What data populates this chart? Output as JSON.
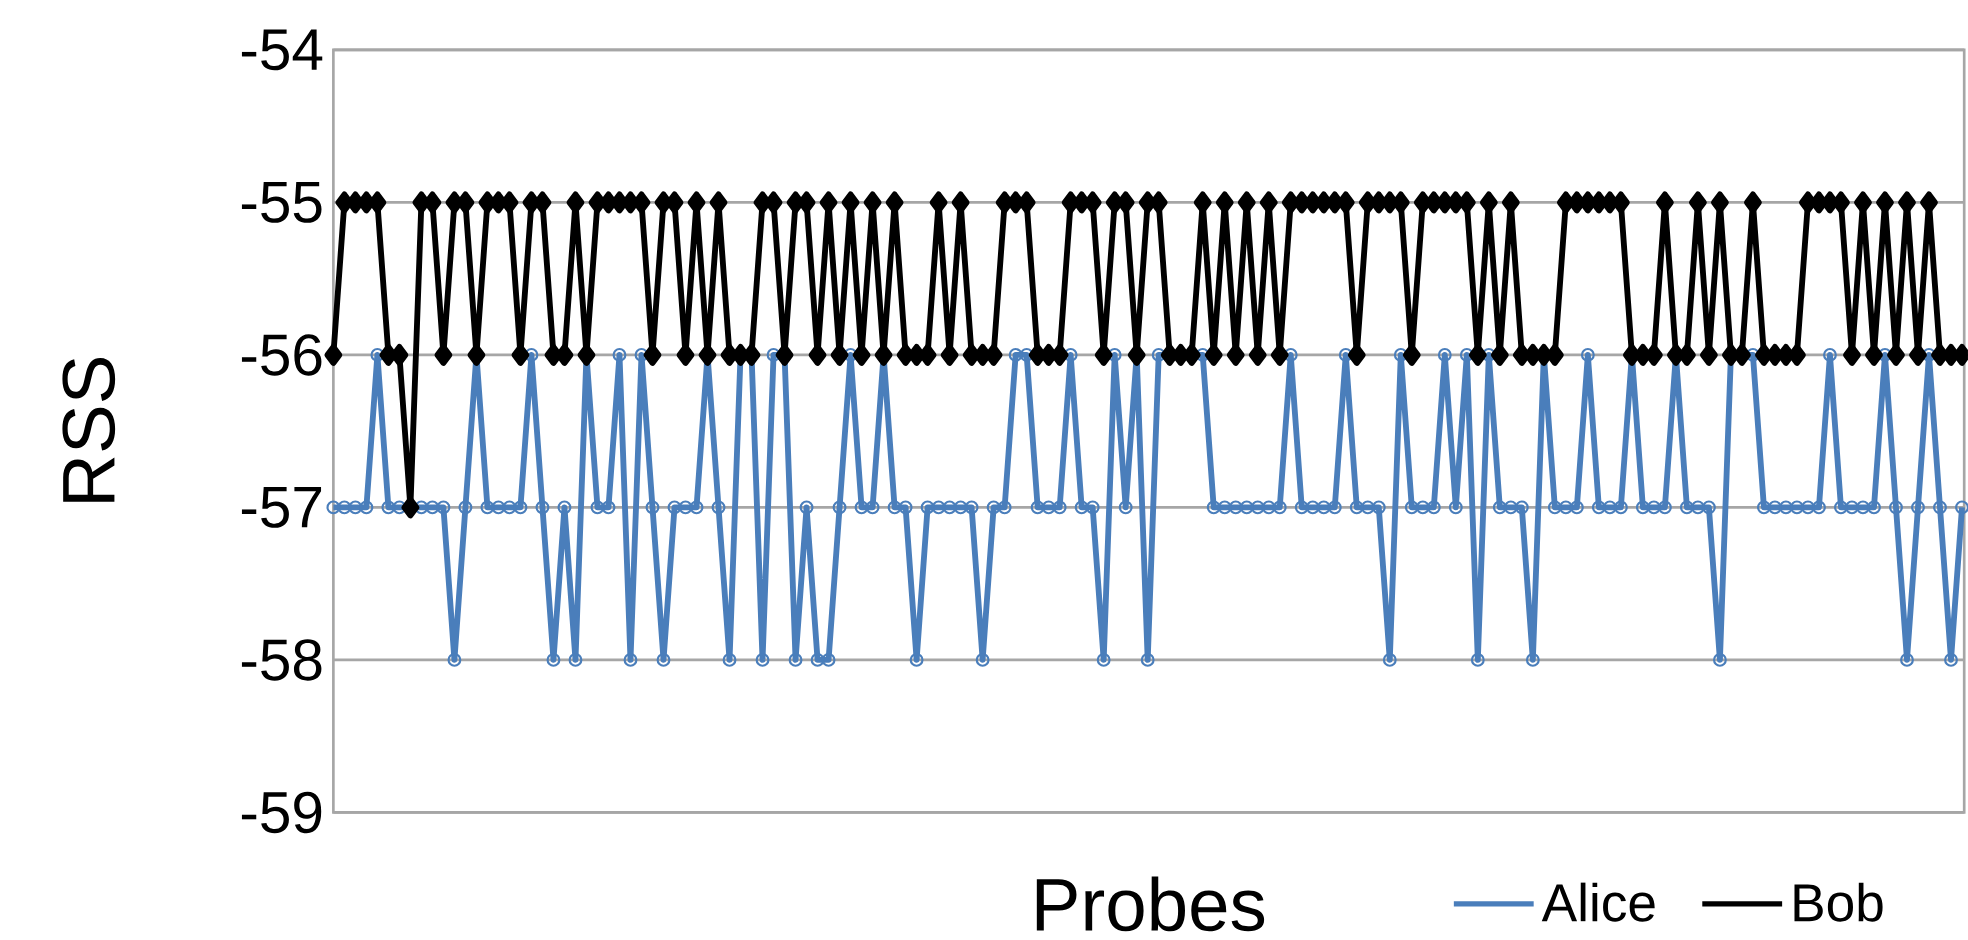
{
  "chart_data": {
    "type": "line",
    "xlabel": "Probes",
    "ylabel": "RSS",
    "categories": [
      null,
      null,
      null,
      null,
      null,
      null,
      null,
      null,
      null,
      null,
      null,
      null,
      null,
      null,
      null,
      null,
      null,
      null,
      null,
      null,
      null,
      null,
      null,
      null,
      null,
      null,
      null,
      null,
      null,
      null,
      null,
      null,
      null,
      null,
      null,
      null,
      null,
      null,
      null,
      null,
      null,
      null,
      null,
      null,
      null,
      null,
      null,
      null,
      null,
      null,
      null,
      null,
      null,
      null,
      null,
      null,
      null,
      null,
      null,
      null,
      null,
      null,
      null,
      null,
      null,
      null,
      null,
      null,
      null,
      null,
      null,
      null,
      null,
      null,
      null,
      null,
      null,
      null,
      null,
      null,
      null,
      null,
      null,
      null,
      null,
      null,
      null,
      null,
      null,
      null,
      null,
      null,
      null,
      null,
      null,
      null,
      null,
      null,
      null,
      null,
      null,
      null,
      null,
      null,
      null,
      null,
      null,
      null,
      null,
      null,
      null,
      null,
      null,
      null,
      null,
      null,
      null,
      null,
      null,
      null,
      null,
      null,
      null,
      null,
      null,
      null,
      null,
      null,
      null,
      null,
      null,
      null,
      null,
      null,
      null,
      null,
      null,
      null,
      null,
      null,
      null,
      null,
      null,
      null,
      null,
      null,
      null,
      null,
      null
    ],
    "series": [
      {
        "name": "Alice",
        "color": "#4a7ebb",
        "marker": "circle",
        "values": [
          -57,
          -57,
          -57,
          -57,
          -56,
          -57,
          -57,
          -57,
          -57,
          -57,
          -57,
          -58,
          -57,
          -56,
          -57,
          -57,
          -57,
          -57,
          -56,
          -57,
          -58,
          -57,
          -58,
          -56,
          -57,
          -57,
          -56,
          -58,
          -56,
          -57,
          -58,
          -57,
          -57,
          -57,
          -56,
          -57,
          -58,
          -56,
          -56,
          -58,
          -56,
          -56,
          -58,
          -57,
          -58,
          -58,
          -57,
          -56,
          -57,
          -57,
          -56,
          -57,
          -57,
          -58,
          -57,
          -57,
          -57,
          -57,
          -57,
          -58,
          -57,
          -57,
          -56,
          -56,
          -57,
          -57,
          -57,
          -56,
          -57,
          -57,
          -58,
          -56,
          -57,
          -56,
          -58,
          -56,
          -56,
          -56,
          -56,
          -56,
          -57,
          -57,
          -57,
          -57,
          -57,
          -57,
          -57,
          -56,
          -57,
          -57,
          -57,
          -57,
          -56,
          -57,
          -57,
          -57,
          -58,
          -56,
          -57,
          -57,
          -57,
          -56,
          -57,
          -56,
          -58,
          -56,
          -57,
          -57,
          -57,
          -58,
          -56,
          -57,
          -57,
          -57,
          -56,
          -57,
          -57,
          -57,
          -56,
          -57,
          -57,
          -57,
          -56,
          -57,
          -57,
          -57,
          -58,
          -56,
          -56,
          -56,
          -57,
          -57,
          -57,
          -57,
          -57,
          -57,
          -56,
          -57,
          -57,
          -57,
          -57,
          -56,
          -57,
          -58,
          -57,
          -56,
          -57,
          -58,
          -57
        ]
      },
      {
        "name": "Bob",
        "color": "#000000",
        "marker": "diamond",
        "values": [
          -56,
          -55,
          -55,
          -55,
          -55,
          -56,
          -56,
          -57,
          -55,
          -55,
          -56,
          -55,
          -55,
          -56,
          -55,
          -55,
          -55,
          -56,
          -55,
          -55,
          -56,
          -56,
          -55,
          -56,
          -55,
          -55,
          -55,
          -55,
          -55,
          -56,
          -55,
          -55,
          -56,
          -55,
          -56,
          -55,
          -56,
          -56,
          -56,
          -55,
          -55,
          -56,
          -55,
          -55,
          -56,
          -55,
          -56,
          -55,
          -56,
          -55,
          -56,
          -55,
          -56,
          -56,
          -56,
          -55,
          -56,
          -55,
          -56,
          -56,
          -56,
          -55,
          -55,
          -55,
          -56,
          -56,
          -56,
          -55,
          -55,
          -55,
          -56,
          -55,
          -55,
          -56,
          -55,
          -55,
          -56,
          -56,
          -56,
          -55,
          -56,
          -55,
          -56,
          -55,
          -56,
          -55,
          -56,
          -55,
          -55,
          -55,
          -55,
          -55,
          -55,
          -56,
          -55,
          -55,
          -55,
          -55,
          -56,
          -55,
          -55,
          -55,
          -55,
          -55,
          -56,
          -55,
          -56,
          -55,
          -56,
          -56,
          -56,
          -56,
          -55,
          -55,
          -55,
          -55,
          -55,
          -55,
          -56,
          -56,
          -56,
          -55,
          -56,
          -56,
          -55,
          -56,
          -55,
          -56,
          -56,
          -55,
          -56,
          -56,
          -56,
          -56,
          -55,
          -55,
          -55,
          -55,
          -56,
          -55,
          -56,
          -55,
          -56,
          -55,
          -56,
          -55,
          -56,
          -56,
          -56
        ]
      }
    ],
    "ylim": [
      -59,
      -54
    ],
    "yticks": [
      -59,
      -58,
      -57,
      -56,
      -55,
      -54
    ],
    "grid": "y",
    "legend": "bottom right",
    "line_style": "solid"
  }
}
